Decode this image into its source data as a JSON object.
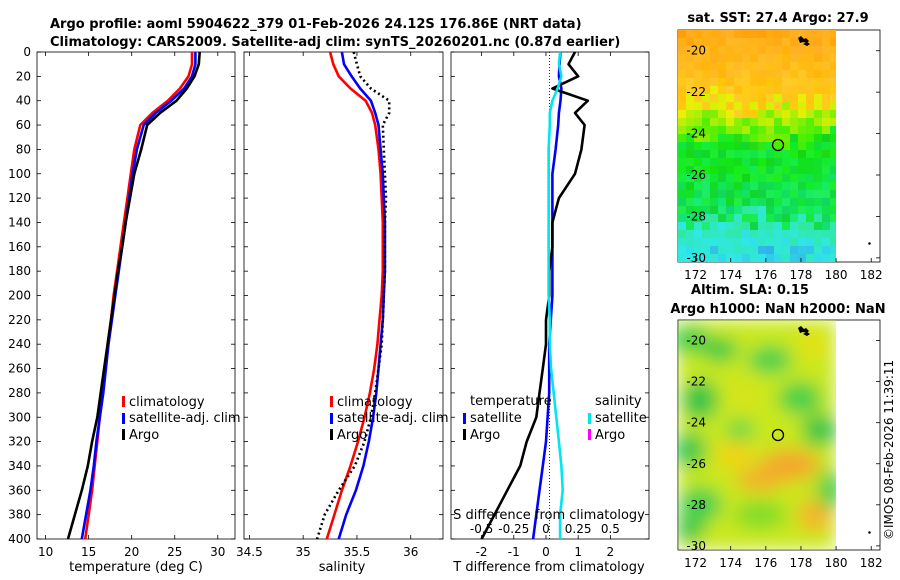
{
  "header": {
    "line1": "Argo profile: aoml 5904622_379 01-Feb-2026 24.12S 176.86E (NRT data)",
    "line2": "Climatology: CARS2009. Satellite-adj clim: synTS_20260201.nc (0.87d earlier)"
  },
  "colors": {
    "climatology": "#ff0000",
    "satellite_adj": "#0000ff",
    "argo": "#000000",
    "sal_satellite": "#00e5ee",
    "sal_argo": "#ff00ff"
  },
  "legends": {
    "temp": [
      "climatology",
      "satellite-adj. clim",
      "Argo"
    ],
    "sal": [
      "climatology",
      "satellite-adj. clim",
      "Argo"
    ],
    "diff_t_title": "temperature",
    "diff_t": [
      "satellite",
      "Argo"
    ],
    "diff_s_title": "salinity",
    "diff_s": [
      "satellite",
      "Argo"
    ]
  },
  "chart_data": [
    {
      "type": "line",
      "title": "",
      "xlabel": "temperature (deg C)",
      "ylabel": "",
      "xlim": [
        9,
        32
      ],
      "ylim": [
        400,
        0
      ],
      "xticks": [
        "10",
        "15",
        "20",
        "25",
        "30"
      ],
      "yticks": [
        "0",
        "20",
        "40",
        "60",
        "80",
        "100",
        "120",
        "140",
        "160",
        "180",
        "200",
        "220",
        "240",
        "260",
        "280",
        "300",
        "320",
        "340",
        "360",
        "380",
        "400"
      ],
      "depth": [
        0,
        10,
        20,
        30,
        40,
        50,
        60,
        80,
        100,
        120,
        140,
        160,
        180,
        200,
        220,
        240,
        260,
        280,
        300,
        320,
        340,
        360,
        380,
        400
      ],
      "series": [
        {
          "name": "climatology",
          "values": [
            27.0,
            27.0,
            26.6,
            25.6,
            24.2,
            22.4,
            21.0,
            20.3,
            19.9,
            19.5,
            19.1,
            18.7,
            18.3,
            17.9,
            17.6,
            17.2,
            16.9,
            16.6,
            16.3,
            16.0,
            15.7,
            15.4,
            15.0,
            14.6
          ]
        },
        {
          "name": "satellite-adj. clim",
          "values": [
            27.4,
            27.4,
            27.0,
            26.1,
            24.6,
            22.8,
            21.4,
            20.6,
            20.1,
            19.7,
            19.3,
            18.9,
            18.5,
            18.1,
            17.7,
            17.3,
            17.0,
            16.7,
            16.3,
            15.9,
            15.6,
            15.2,
            14.7,
            14.2
          ]
        },
        {
          "name": "Argo",
          "values": [
            27.9,
            27.8,
            27.3,
            26.4,
            25.2,
            23.3,
            21.8,
            21.1,
            20.3,
            19.8,
            19.3,
            18.9,
            18.4,
            18.0,
            17.6,
            17.2,
            16.8,
            16.4,
            16.0,
            15.4,
            14.9,
            14.2,
            13.4,
            12.6
          ]
        }
      ]
    },
    {
      "type": "line",
      "xlabel": "salinity",
      "xlim": [
        34.45,
        36.3
      ],
      "ylim": [
        400,
        0
      ],
      "xticks": [
        "34.5",
        "35",
        "35.5",
        "36"
      ],
      "depth": [
        0,
        10,
        20,
        30,
        40,
        50,
        60,
        80,
        100,
        120,
        140,
        160,
        180,
        200,
        220,
        240,
        260,
        280,
        300,
        320,
        340,
        360,
        380,
        400
      ],
      "series": [
        {
          "name": "climatology",
          "values": [
            35.25,
            35.28,
            35.33,
            35.44,
            35.58,
            35.64,
            35.67,
            35.7,
            35.72,
            35.73,
            35.74,
            35.74,
            35.74,
            35.73,
            35.71,
            35.69,
            35.66,
            35.62,
            35.57,
            35.51,
            35.44,
            35.36,
            35.29,
            35.22
          ]
        },
        {
          "name": "satellite-adj. clim",
          "values": [
            35.36,
            35.38,
            35.45,
            35.53,
            35.63,
            35.67,
            35.7,
            35.72,
            35.74,
            35.75,
            35.76,
            35.76,
            35.76,
            35.75,
            35.74,
            35.72,
            35.7,
            35.68,
            35.65,
            35.61,
            35.56,
            35.49,
            35.4,
            35.33
          ]
        },
        {
          "name": "Argo",
          "values": [
            35.47,
            35.5,
            35.53,
            35.63,
            35.8,
            35.8,
            35.74,
            35.75,
            35.76,
            35.77,
            35.76,
            35.76,
            35.76,
            35.75,
            35.74,
            35.73,
            35.7,
            35.67,
            35.63,
            35.57,
            35.48,
            35.33,
            35.2,
            35.13
          ]
        }
      ]
    },
    {
      "type": "line",
      "xlabel": "T difference from climatology",
      "xlabel2": "S difference from climatology",
      "xlim": [
        -2.95,
        3.2
      ],
      "ylim": [
        400,
        0
      ],
      "xticks": [
        "-2",
        "-1",
        "0",
        "1",
        "2"
      ],
      "xticks2": [
        "-0.5",
        "-0.25",
        "0",
        "0.25",
        "0.5"
      ],
      "depth": [
        0,
        10,
        20,
        30,
        40,
        50,
        60,
        80,
        100,
        120,
        140,
        160,
        180,
        200,
        220,
        240,
        260,
        280,
        300,
        320,
        340,
        360,
        380,
        400
      ],
      "series": [
        {
          "name": "T satellite",
          "values": [
            0.45,
            0.42,
            0.4,
            0.48,
            0.45,
            0.4,
            0.38,
            0.3,
            0.2,
            0.2,
            0.2,
            0.2,
            0.2,
            0.2,
            0.15,
            0.1,
            0.1,
            0.1,
            0.05,
            0.0,
            -0.1,
            -0.2,
            -0.3,
            -0.4
          ]
        },
        {
          "name": "T Argo",
          "values": [
            0.9,
            0.7,
            1.0,
            0.2,
            1.3,
            0.9,
            1.2,
            1.1,
            0.9,
            0.4,
            0.2,
            0.2,
            0.1,
            0.1,
            0.0,
            0.0,
            -0.1,
            -0.2,
            -0.3,
            -0.6,
            -0.8,
            -1.2,
            -1.6,
            -2.0
          ]
        },
        {
          "name": "S satellite",
          "values": [
            0.11,
            0.1,
            0.12,
            0.09,
            0.05,
            0.03,
            0.03,
            0.02,
            0.02,
            0.02,
            0.02,
            0.02,
            0.02,
            0.02,
            0.03,
            0.03,
            0.04,
            0.06,
            0.08,
            0.1,
            0.12,
            0.13,
            0.11,
            0.11
          ]
        }
      ]
    }
  ],
  "maps": {
    "top": {
      "title": "sat. SST: 27.4 Argo: 27.9",
      "yticks": [
        "-20",
        "-22",
        "-24",
        "-26",
        "-28",
        "-30"
      ],
      "xticks": [
        "172",
        "174",
        "176",
        "178",
        "180",
        "182"
      ]
    },
    "bottom": {
      "title1": "Altim. SLA: 0.15",
      "title2": "Argo h1000: NaN h2000: NaN",
      "yticks": [
        "-20",
        "-22",
        "-24",
        "-26",
        "-28",
        "-30"
      ],
      "xticks": [
        "172",
        "174",
        "176",
        "178",
        "180",
        "182"
      ]
    },
    "marker": {
      "lon": 176.86,
      "lat": -24.12
    }
  },
  "footer": {
    "copyright": "©IMOS 08-Feb-2026 11:39:11"
  }
}
